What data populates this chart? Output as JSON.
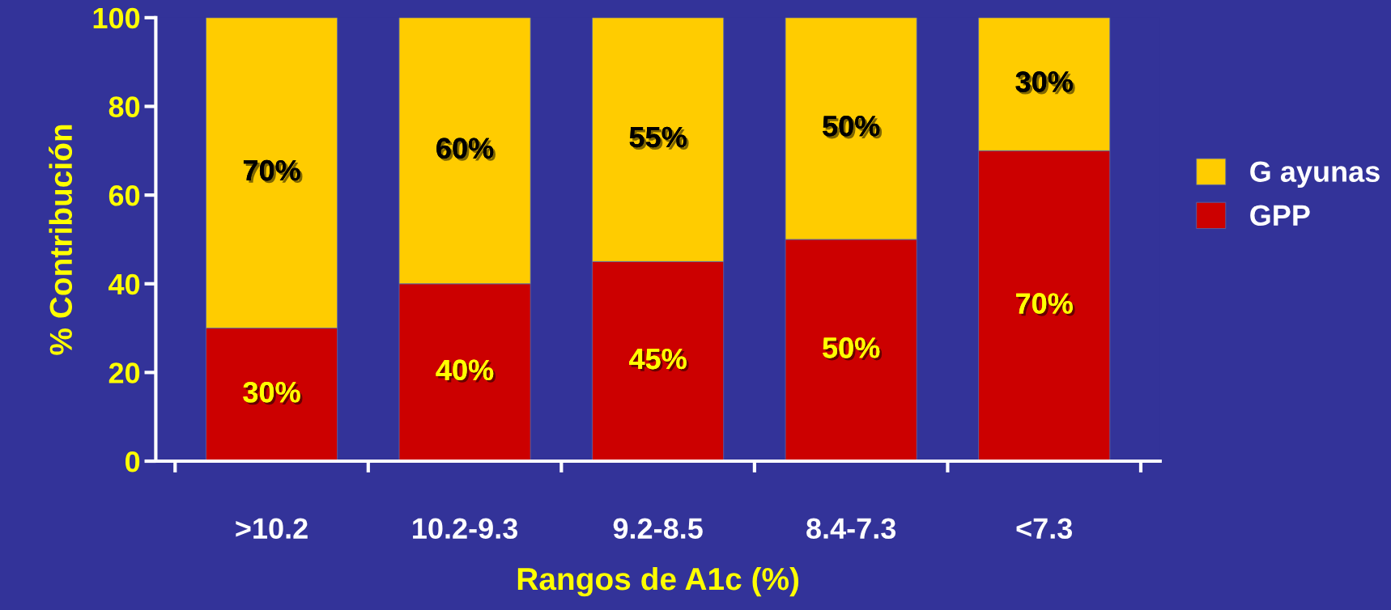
{
  "chart_data": {
    "type": "bar",
    "stacked": true,
    "xlabel": "Rangos de A1c (%)",
    "ylabel": "% Contribución",
    "categories": [
      ">10.2",
      "10.2-9.3",
      "9.2-8.5",
      "8.4-7.3",
      "<7.3"
    ],
    "series": [
      {
        "name": "GPP",
        "color": "#cc0000",
        "values": [
          30,
          40,
          45,
          50,
          70
        ],
        "value_labels": [
          "30%",
          "40%",
          "45%",
          "50%",
          "70%"
        ]
      },
      {
        "name": "G ayunas",
        "color": "#ffcc00",
        "values": [
          70,
          60,
          55,
          50,
          30
        ],
        "value_labels": [
          "70%",
          "60%",
          "55%",
          "50%",
          "30%"
        ]
      }
    ],
    "ylim": [
      0,
      100
    ],
    "yticks": [
      0,
      20,
      40,
      60,
      80,
      100
    ],
    "legend": "right",
    "grid": false
  }
}
